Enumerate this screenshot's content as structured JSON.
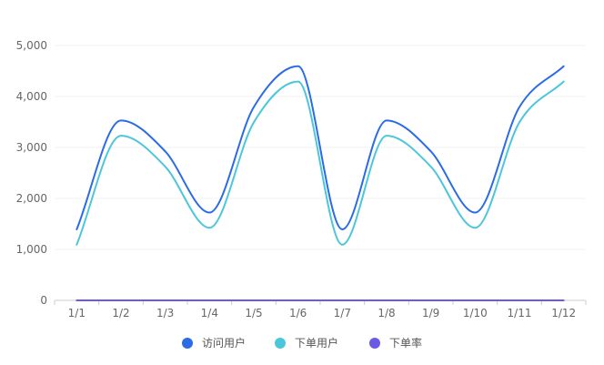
{
  "chart_data": {
    "type": "line",
    "smooth": true,
    "categories": [
      "1/1",
      "1/2",
      "1/3",
      "1/4",
      "1/5",
      "1/6",
      "1/7",
      "1/8",
      "1/9",
      "1/10",
      "1/11",
      "1/12"
    ],
    "series": [
      {
        "name": "访问用户",
        "color": "#2b6be6",
        "values": [
          1393,
          3530,
          2923,
          1723,
          3792,
          4593,
          1393,
          3530,
          2923,
          1723,
          3792,
          4593
        ]
      },
      {
        "name": "下单用户",
        "color": "#4cc6db",
        "values": [
          1093,
          3230,
          2623,
          1423,
          3492,
          4293,
          1093,
          3230,
          2623,
          1423,
          3492,
          4293
        ]
      },
      {
        "name": "下单率",
        "color": "#6a5ae6",
        "values": [
          0,
          0,
          0,
          0,
          0,
          0,
          0,
          0,
          0,
          0,
          0,
          0
        ]
      }
    ],
    "ylim": [
      0,
      5000
    ],
    "yticks": [
      "0",
      "1,000",
      "2,000",
      "3,000",
      "4,000",
      "5,000"
    ],
    "grid": true,
    "legend_position": "bottom-center"
  }
}
